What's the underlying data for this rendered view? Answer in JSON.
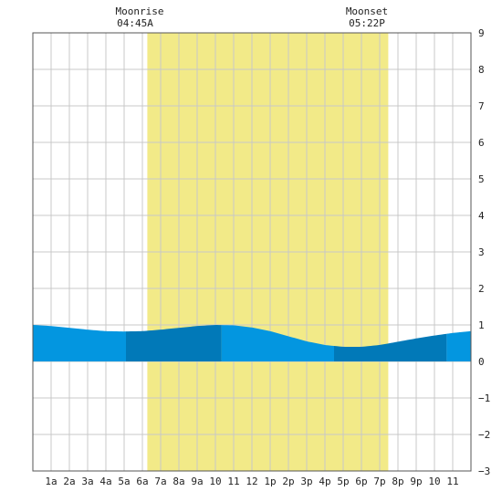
{
  "chart_data": {
    "type": "area",
    "title": "",
    "xlabel": "",
    "ylabel": "",
    "xlim": [
      0,
      24
    ],
    "ylim": [
      -3,
      9
    ],
    "y_ticks": [
      -3,
      -2,
      -1,
      0,
      1,
      2,
      3,
      4,
      5,
      6,
      7,
      8,
      9
    ],
    "x_tick_labels": [
      "1a",
      "2a",
      "3a",
      "4a",
      "5a",
      "6a",
      "7a",
      "8a",
      "9a",
      "10",
      "11",
      "12",
      "1p",
      "2p",
      "3p",
      "4p",
      "5p",
      "6p",
      "7p",
      "8p",
      "9p",
      "10",
      "11"
    ],
    "grid": true,
    "daylight_band": {
      "start_hour": 6.27,
      "end_hour": 19.47,
      "color": "#f2ea88"
    },
    "moonrise": {
      "label": "Moonrise",
      "time": "04:45A",
      "hour": 4.75
    },
    "moonset": {
      "label": "Moonset",
      "time": "05:22P",
      "hour": 17.37
    },
    "series": [
      {
        "x": [
          0,
          1,
          2,
          3,
          4,
          5,
          6,
          7,
          8,
          9,
          10,
          11,
          12,
          13,
          14,
          15,
          16,
          17,
          18,
          19,
          20,
          21,
          22,
          23,
          24
        ],
        "values": [
          1.0,
          0.97,
          0.92,
          0.87,
          0.83,
          0.82,
          0.83,
          0.87,
          0.92,
          0.97,
          1.0,
          0.99,
          0.93,
          0.83,
          0.69,
          0.55,
          0.45,
          0.4,
          0.4,
          0.45,
          0.54,
          0.63,
          0.71,
          0.78,
          0.83
        ]
      }
    ],
    "colors": {
      "fill": "#0396e0",
      "fill_alt": "#0179b8",
      "grid": "#c8c8c8",
      "axis": "#555555"
    }
  }
}
